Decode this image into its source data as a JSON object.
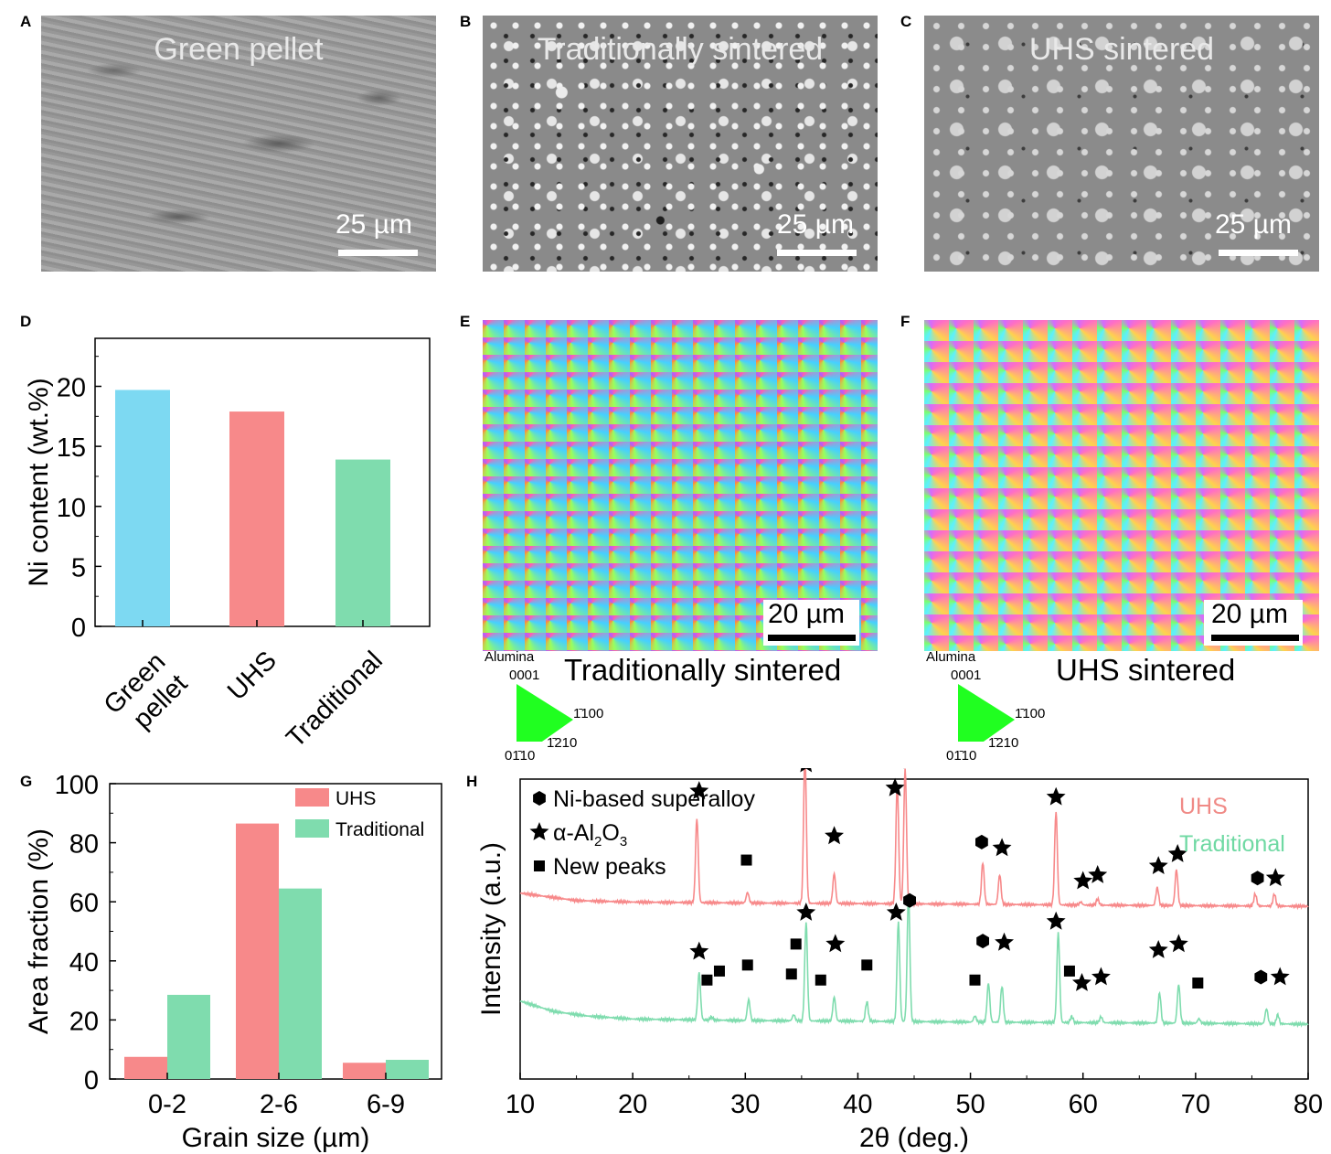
{
  "panels": {
    "A": {
      "letter": "A",
      "title": "Green pellet",
      "scale": "25 µm"
    },
    "B": {
      "letter": "B",
      "title": "Traditionally sintered",
      "scale": "25 µm"
    },
    "C": {
      "letter": "C",
      "title": "UHS sintered",
      "scale": "25 µm"
    },
    "D": {
      "letter": "D"
    },
    "E": {
      "letter": "E",
      "caption": "Traditionally sintered",
      "scale": "20 µm"
    },
    "F": {
      "letter": "F",
      "caption": "UHS sintered",
      "scale": "20 µm"
    },
    "G": {
      "letter": "G"
    },
    "H": {
      "letter": "H"
    }
  },
  "ipf_legend": {
    "title": "Alumina",
    "top": "0001",
    "right": "1̄100",
    "bottom_left": "01̄10",
    "bottom_mid": "1̄210"
  },
  "colors": {
    "green_pellet": "#7dd9f2",
    "uhs": "#f7898a",
    "traditional": "#7fdcae",
    "uhs_text": "#f08a86",
    "traditional_text": "#6fd9a3"
  },
  "chart_data": [
    {
      "id": "D",
      "type": "bar",
      "categories": [
        "Green\npellet",
        "UHS",
        "Traditional"
      ],
      "values": [
        19.7,
        17.9,
        13.9
      ],
      "ylabel": "Ni content (wt.%)",
      "xlabel": "",
      "ylim": [
        0,
        24
      ],
      "yticks": [
        0,
        5,
        10,
        15,
        20
      ]
    },
    {
      "id": "G",
      "type": "bar",
      "categories": [
        "0-2",
        "2-6",
        "6-9"
      ],
      "series": [
        {
          "name": "UHS",
          "values": [
            7.5,
            86.5,
            5.5
          ]
        },
        {
          "name": "Traditional",
          "values": [
            28.5,
            64.5,
            6.5
          ]
        }
      ],
      "xlabel": "Grain size (µm)",
      "ylabel": "Area fraction (%)",
      "ylim": [
        0,
        100
      ],
      "yticks": [
        0,
        20,
        40,
        60,
        80,
        100
      ],
      "legend": "top-right"
    },
    {
      "id": "H",
      "type": "line",
      "xlabel": "2θ (deg.)",
      "ylabel": "Intensity (a.u.)",
      "xlim": [
        10,
        80
      ],
      "xticks": [
        10,
        20,
        30,
        40,
        50,
        60,
        70,
        80
      ],
      "series": [
        {
          "name": "UHS",
          "baseline": [
            [
              10,
              0.62
            ],
            [
              15,
              0.595
            ],
            [
              20,
              0.59
            ],
            [
              30,
              0.587
            ],
            [
              40,
              0.585
            ],
            [
              50,
              0.583
            ],
            [
              60,
              0.58
            ],
            [
              70,
              0.578
            ],
            [
              80,
              0.576
            ]
          ],
          "peaks": [
            [
              25.7,
              0.28
            ],
            [
              30.2,
              0.035
            ],
            [
              35.3,
              0.5
            ],
            [
              37.9,
              0.1
            ],
            [
              43.5,
              0.4
            ],
            [
              44.2,
              0.45
            ],
            [
              51.1,
              0.14
            ],
            [
              52.6,
              0.1
            ],
            [
              57.6,
              0.31
            ],
            [
              59.8,
              0.01
            ],
            [
              61.3,
              0.02
            ],
            [
              66.6,
              0.06
            ],
            [
              68.3,
              0.12
            ],
            [
              75.3,
              0.04
            ],
            [
              77.0,
              0.04
            ]
          ]
        },
        {
          "name": "Traditional",
          "baseline": [
            [
              10,
              0.26
            ],
            [
              13,
              0.225
            ],
            [
              16,
              0.21
            ],
            [
              20,
              0.2
            ],
            [
              30,
              0.195
            ],
            [
              40,
              0.193
            ],
            [
              50,
              0.19
            ],
            [
              60,
              0.188
            ],
            [
              70,
              0.186
            ],
            [
              80,
              0.183
            ]
          ],
          "peaks": [
            [
              25.9,
              0.16
            ],
            [
              27.0,
              0.01
            ],
            [
              30.3,
              0.07
            ],
            [
              34.3,
              0.02
            ],
            [
              35.4,
              0.33
            ],
            [
              37.9,
              0.08
            ],
            [
              40.8,
              0.065
            ],
            [
              43.6,
              0.33
            ],
            [
              44.5,
              0.42
            ],
            [
              50.4,
              0.02
            ],
            [
              51.6,
              0.13
            ],
            [
              52.8,
              0.12
            ],
            [
              57.8,
              0.3
            ],
            [
              59.0,
              0.02
            ],
            [
              61.6,
              0.02
            ],
            [
              66.8,
              0.1
            ],
            [
              68.5,
              0.13
            ],
            [
              70.3,
              0.015
            ],
            [
              76.3,
              0.05
            ],
            [
              77.3,
              0.03
            ]
          ]
        }
      ],
      "legend_entries": [
        "Ni-based superalloy",
        "α-Al2O3",
        "New peaks"
      ],
      "series_labels": [
        "UHS",
        "Traditional"
      ],
      "markers": [
        {
          "shape": "star",
          "x": 25.9,
          "y": 0.96
        },
        {
          "shape": "square",
          "x": 30.1,
          "y": 0.73
        },
        {
          "shape": "star",
          "x": 35.4,
          "y": 1.05
        },
        {
          "shape": "star",
          "x": 37.9,
          "y": 0.81
        },
        {
          "shape": "star",
          "x": 43.3,
          "y": 0.97
        },
        {
          "shape": "hex",
          "x": 44.1,
          "y": 1.06
        },
        {
          "shape": "hex",
          "x": 51.0,
          "y": 0.79
        },
        {
          "shape": "star",
          "x": 52.8,
          "y": 0.77
        },
        {
          "shape": "star",
          "x": 57.6,
          "y": 0.94
        },
        {
          "shape": "star",
          "x": 60.0,
          "y": 0.66
        },
        {
          "shape": "star",
          "x": 61.3,
          "y": 0.68
        },
        {
          "shape": "star",
          "x": 66.7,
          "y": 0.71
        },
        {
          "shape": "star",
          "x": 68.4,
          "y": 0.75
        },
        {
          "shape": "hex",
          "x": 75.5,
          "y": 0.67
        },
        {
          "shape": "star",
          "x": 77.1,
          "y": 0.67
        },
        {
          "shape": "star",
          "x": 25.9,
          "y": 0.425
        },
        {
          "shape": "square",
          "x": 26.6,
          "y": 0.33
        },
        {
          "shape": "square",
          "x": 27.7,
          "y": 0.36
        },
        {
          "shape": "square",
          "x": 30.2,
          "y": 0.38
        },
        {
          "shape": "square",
          "x": 34.1,
          "y": 0.35
        },
        {
          "shape": "square",
          "x": 34.5,
          "y": 0.45
        },
        {
          "shape": "star",
          "x": 35.4,
          "y": 0.555
        },
        {
          "shape": "square",
          "x": 36.7,
          "y": 0.33
        },
        {
          "shape": "star",
          "x": 38.0,
          "y": 0.45
        },
        {
          "shape": "square",
          "x": 40.8,
          "y": 0.38
        },
        {
          "shape": "star",
          "x": 43.4,
          "y": 0.555
        },
        {
          "shape": "hex",
          "x": 44.6,
          "y": 0.595
        },
        {
          "shape": "square",
          "x": 50.4,
          "y": 0.33
        },
        {
          "shape": "hex",
          "x": 51.1,
          "y": 0.46
        },
        {
          "shape": "star",
          "x": 53.0,
          "y": 0.455
        },
        {
          "shape": "star",
          "x": 57.6,
          "y": 0.525
        },
        {
          "shape": "square",
          "x": 58.8,
          "y": 0.36
        },
        {
          "shape": "star",
          "x": 59.9,
          "y": 0.32
        },
        {
          "shape": "star",
          "x": 61.6,
          "y": 0.34
        },
        {
          "shape": "star",
          "x": 66.7,
          "y": 0.43
        },
        {
          "shape": "star",
          "x": 68.5,
          "y": 0.45
        },
        {
          "shape": "square",
          "x": 70.2,
          "y": 0.32
        },
        {
          "shape": "hex",
          "x": 75.8,
          "y": 0.34
        },
        {
          "shape": "star",
          "x": 77.5,
          "y": 0.34
        }
      ]
    }
  ]
}
